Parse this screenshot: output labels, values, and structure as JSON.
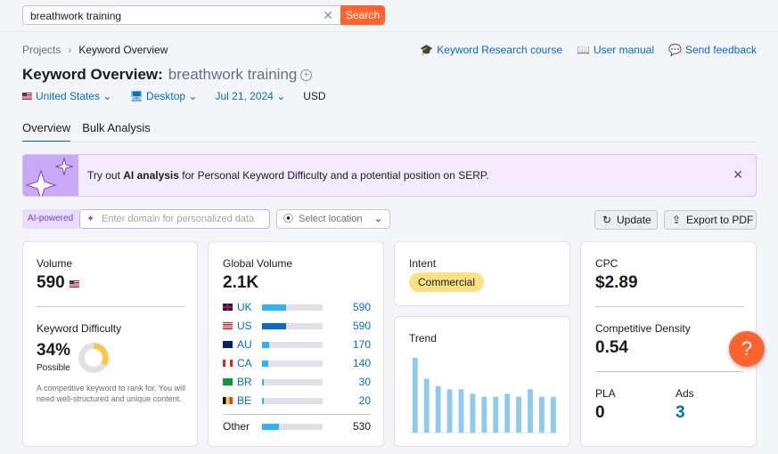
{
  "search": {
    "query": "breathwork training",
    "button": "Search"
  },
  "breadcrumb": {
    "root": "Projects",
    "current": "Keyword Overview"
  },
  "links": {
    "course": "Keyword Research course",
    "manual": "User manual",
    "feedback": "Send feedback"
  },
  "title": {
    "label": "Keyword Overview:",
    "keyword": "breathwork training"
  },
  "filters": {
    "country": "United States",
    "device": "Desktop",
    "date": "Jul 21, 2024",
    "currency": "USD"
  },
  "tabs": [
    "Overview",
    "Bulk Analysis"
  ],
  "banner": {
    "prefix": "Try out ",
    "highlight": "AI analysis",
    "suffix": " for Personal Keyword Difficulty and a potential position on SERP."
  },
  "controls": {
    "ai_label": "AI-powered",
    "domain_placeholder": "Enter domain for personalized data",
    "location": "Select location",
    "update": "Update",
    "export": "Export to PDF"
  },
  "volume": {
    "label": "Volume",
    "value": "590"
  },
  "kd": {
    "label": "Keyword Difficulty",
    "value": "34%",
    "level": "Possible",
    "percent": 34,
    "description": "A competitive keyword to rank for. You will need well-structured and unique content."
  },
  "global_volume": {
    "label": "Global Volume",
    "value": "2.1K",
    "rows": [
      {
        "code": "UK",
        "value": "590",
        "share": 0.28
      },
      {
        "code": "US",
        "value": "590",
        "share": 0.28
      },
      {
        "code": "AU",
        "value": "170",
        "share": 0.08
      },
      {
        "code": "CA",
        "value": "140",
        "share": 0.07
      },
      {
        "code": "BR",
        "value": "30",
        "share": 0.015
      },
      {
        "code": "BE",
        "value": "20",
        "share": 0.01
      }
    ],
    "other": {
      "label": "Other",
      "value": "530",
      "share": 0.25
    }
  },
  "intent": {
    "label": "Intent",
    "badge": "Commercial"
  },
  "trend": {
    "label": "Trend",
    "values": [
      100,
      72,
      62,
      58,
      58,
      52,
      48,
      48,
      52,
      48,
      58,
      48,
      48
    ]
  },
  "cpc": {
    "label": "CPC",
    "value": "$2.89"
  },
  "density": {
    "label": "Competitive Density",
    "value": "0.54"
  },
  "pla": {
    "label": "PLA",
    "value": "0"
  },
  "ads": {
    "label": "Ads",
    "value": "3"
  },
  "help": {
    "label": "?"
  },
  "colors": {
    "accent": "#ff642d",
    "link": "#006dca",
    "bar": "#2bb3ff",
    "trend": "#8ec9f0"
  }
}
